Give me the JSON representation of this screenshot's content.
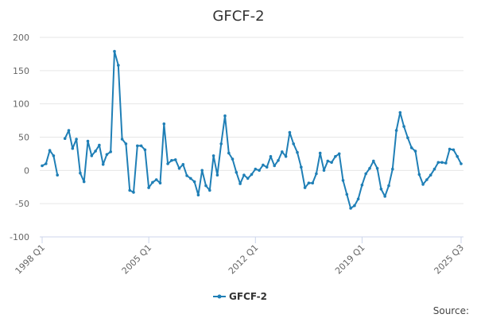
{
  "chart_data": {
    "type": "line",
    "title": "GFCF-2",
    "xlabel": "",
    "ylabel": "",
    "ylim": [
      -100,
      200
    ],
    "y_ticks": [
      -100,
      -50,
      0,
      50,
      100,
      150,
      200
    ],
    "x_ticks": [
      "1998 Q1",
      "2005 Q1",
      "2012 Q1",
      "2019 Q1",
      "2025 Q3"
    ],
    "legend_position": "bottom-center",
    "grid": true,
    "series_color": "#1f7fb6",
    "source_label": "Source:",
    "series": [
      {
        "name": "GFCF-2",
        "values": [
          7,
          10,
          30,
          22,
          -7,
          null,
          48,
          60,
          33,
          47,
          -4,
          -17,
          44,
          22,
          29,
          38,
          9,
          24,
          28,
          179,
          158,
          47,
          40,
          -30,
          -33,
          37,
          37,
          31,
          -26,
          -18,
          -14,
          -19,
          70,
          10,
          15,
          16,
          3,
          9,
          -8,
          -12,
          -17,
          -37,
          0,
          -23,
          -30,
          22,
          -7,
          40,
          82,
          26,
          17,
          -3,
          -20,
          -7,
          -12,
          -6,
          2,
          0,
          8,
          5,
          21,
          7,
          15,
          28,
          21,
          57,
          40,
          27,
          5,
          -26,
          -19,
          -19,
          -5,
          26,
          0,
          14,
          12,
          21,
          25,
          -15,
          -36,
          -57,
          -53,
          -43,
          -22,
          -5,
          3,
          14,
          3,
          -28,
          -39,
          -23,
          2,
          60,
          87,
          66,
          49,
          34,
          29,
          -6,
          -21,
          -14,
          -7,
          2,
          12,
          12,
          11,
          32,
          31,
          21,
          10
        ]
      }
    ]
  }
}
